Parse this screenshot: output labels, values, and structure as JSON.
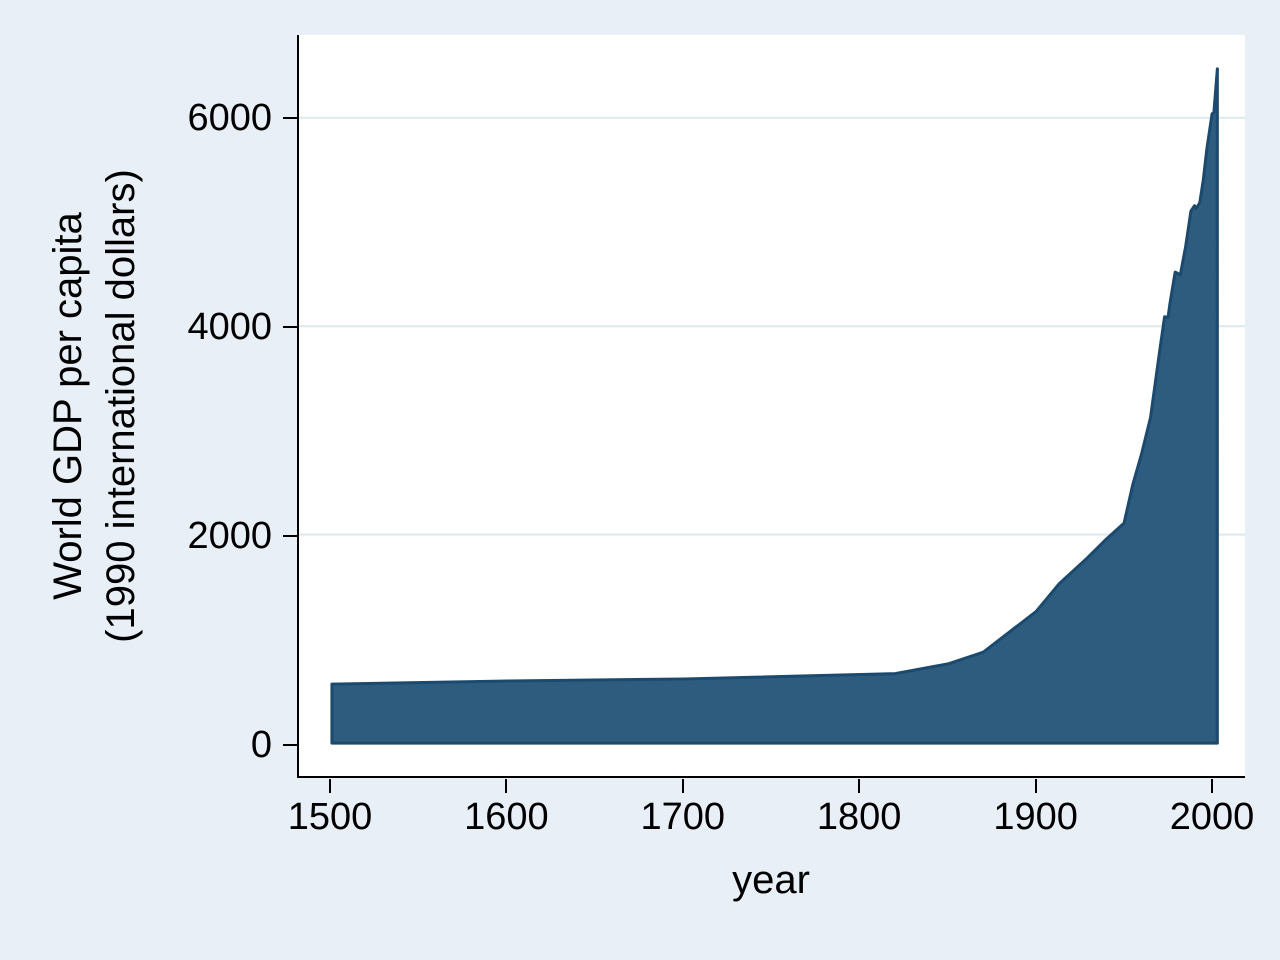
{
  "figure": {
    "xlabel": "year",
    "ylabel_line1": "World GDP per capita",
    "ylabel_line2": "(1990 international dollars)"
  },
  "chart_data": {
    "type": "area",
    "title": "",
    "xlabel": "year",
    "ylabel": "World GDP per capita (1990 international dollars)",
    "x_ticks": [
      1500,
      1600,
      1700,
      1800,
      1900,
      2000
    ],
    "y_ticks": [
      0,
      2000,
      4000,
      6000
    ],
    "xlim": [
      1500,
      2003
    ],
    "ylim": [
      0,
      6800
    ],
    "grid": "horizontal",
    "legend": "none",
    "series": [
      {
        "name": "World GDP per capita (1990 international dollars)",
        "points": [
          [
            1500,
            566
          ],
          [
            1600,
            596
          ],
          [
            1700,
            615
          ],
          [
            1820,
            667
          ],
          [
            1850,
            760
          ],
          [
            1870,
            873
          ],
          [
            1900,
            1262
          ],
          [
            1913,
            1526
          ],
          [
            1929,
            1775
          ],
          [
            1940,
            1959
          ],
          [
            1950,
            2111
          ],
          [
            1955,
            2482
          ],
          [
            1960,
            2777
          ],
          [
            1965,
            3123
          ],
          [
            1970,
            3736
          ],
          [
            1973,
            4091
          ],
          [
            1975,
            4085
          ],
          [
            1976,
            4213
          ],
          [
            1979,
            4519
          ],
          [
            1980,
            4512
          ],
          [
            1982,
            4494
          ],
          [
            1985,
            4764
          ],
          [
            1988,
            5104
          ],
          [
            1990,
            5157
          ],
          [
            1991,
            5130
          ],
          [
            1993,
            5186
          ],
          [
            1995,
            5404
          ],
          [
            1997,
            5697
          ],
          [
            2000,
            6038
          ],
          [
            2001,
            6049
          ],
          [
            2003,
            6469
          ]
        ]
      }
    ],
    "colors": {
      "background": "#e8eff6",
      "plot_background": "#ffffff",
      "gridline": "#dde9f0",
      "area_fill": "#2e5c7f",
      "area_stroke": "#1c4a6e",
      "axis": "#000000"
    }
  }
}
